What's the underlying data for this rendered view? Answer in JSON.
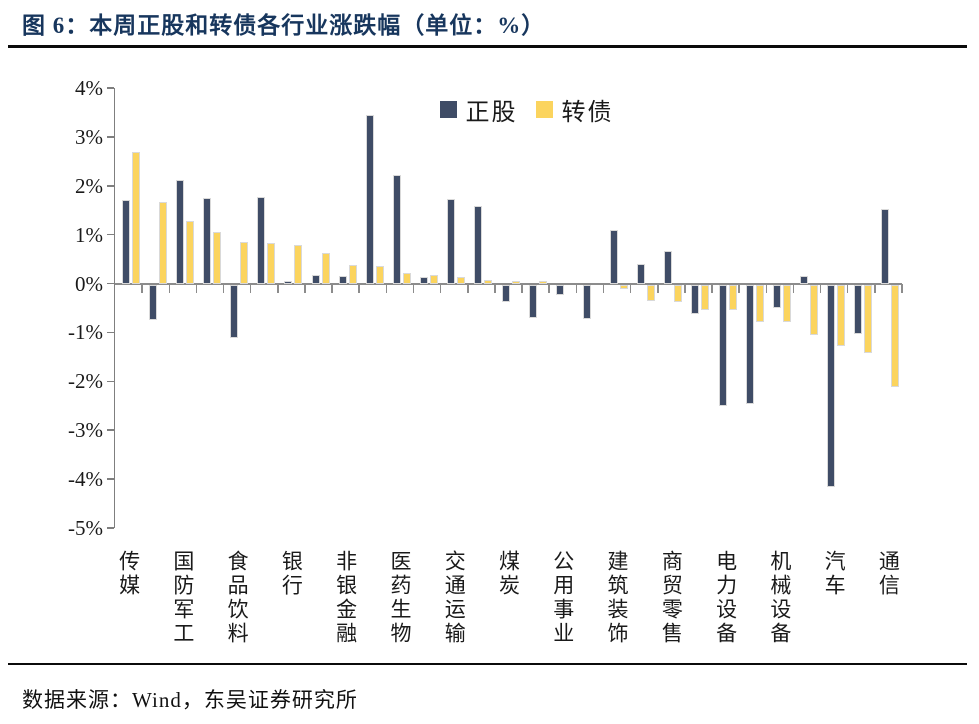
{
  "figure": {
    "title": "图 6：本周正股和转债各行业涨跌幅（单位：%）",
    "source": "数据来源：Wind，东吴证券研究所"
  },
  "colors": {
    "stock_bar": "#3f4c66",
    "bond_bar": "#fbd45e",
    "title_text": "#17365d",
    "axis_line": "#8c8c8c"
  },
  "chart_data": {
    "type": "bar",
    "title": "本周正股和转债各行业涨跌幅（单位：%）",
    "xlabel": "",
    "ylabel": "",
    "grid": false,
    "legend_position": "top-center",
    "ylim": [
      -5,
      4
    ],
    "ytick_step": 1,
    "ytick_labels": [
      "4%",
      "3%",
      "2%",
      "1%",
      "0%",
      "-1%",
      "-2%",
      "-3%",
      "-4%",
      "-5%"
    ],
    "categories": [
      "传媒",
      "",
      "国防军工",
      "",
      "食品饮料",
      "",
      "银行",
      "",
      "非银金融",
      "",
      "医药生物",
      "",
      "交通运输",
      "",
      "煤炭",
      "",
      "公用事业",
      "",
      "建筑装饰",
      "",
      "商贸零售",
      "",
      "电力设备",
      "",
      "机械设备",
      "",
      "汽车",
      "",
      "通信"
    ],
    "series": [
      {
        "name": "正股",
        "color": "#3f4c66",
        "values": [
          1.71,
          -0.73,
          2.12,
          1.76,
          -1.1,
          1.78,
          0.05,
          0.17,
          0.15,
          3.45,
          2.23,
          0.14,
          1.73,
          1.58,
          -0.36,
          -0.68,
          -0.22,
          -0.7,
          1.1,
          0.39,
          0.66,
          -0.61,
          -2.49,
          -2.45,
          -0.47,
          0.16,
          -4.15,
          -1.01,
          1.53
        ]
      },
      {
        "name": "转债",
        "color": "#fbd45e",
        "values": [
          2.69,
          1.66,
          1.28,
          1.05,
          0.84,
          0.82,
          0.78,
          0.63,
          0.38,
          0.36,
          0.22,
          0.17,
          0.14,
          0.08,
          0.06,
          0.05,
          0.0,
          0.0,
          -0.1,
          -0.33,
          -0.36,
          -0.52,
          -0.53,
          -0.76,
          -0.76,
          -1.03,
          -1.25,
          -1.4,
          -2.1
        ]
      }
    ]
  }
}
